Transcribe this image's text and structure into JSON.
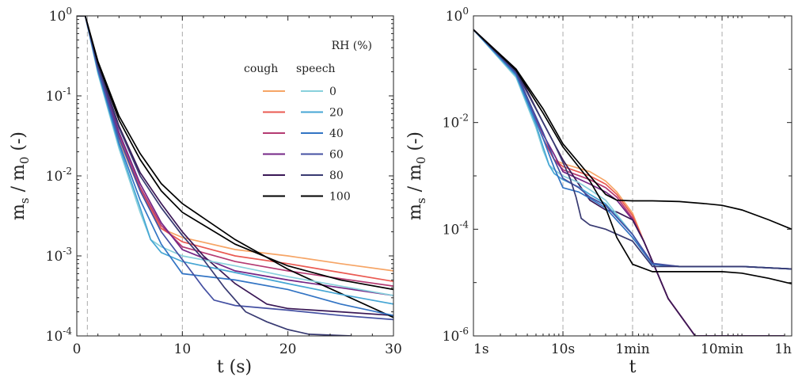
{
  "figure": {
    "left": {
      "xlabel": "t  (s)",
      "ylabel": "m_s / m_0 (-)",
      "xlim": [
        0,
        30
      ],
      "ylim": [
        0.0001,
        1
      ],
      "xticks": [
        {
          "v": 0,
          "label": "0"
        },
        {
          "v": 10,
          "label": "10"
        },
        {
          "v": 20,
          "label": "20"
        },
        {
          "v": 30,
          "label": "30"
        }
      ],
      "yticks": [
        {
          "e": -4
        },
        {
          "e": -3
        },
        {
          "e": -2
        },
        {
          "e": -1
        },
        {
          "e": 0
        }
      ],
      "vlines": [
        1,
        10
      ]
    },
    "right": {
      "xlabel": "t",
      "ylabel": "m_s / m_0 (-)",
      "xlim_seconds": [
        1,
        3600
      ],
      "ylim": [
        1e-06,
        1
      ],
      "xticks": [
        {
          "v": 1,
          "label": "1s"
        },
        {
          "v": 10,
          "label": "10s"
        },
        {
          "v": 60,
          "label": "1min"
        },
        {
          "v": 600,
          "label": "10min"
        },
        {
          "v": 3600,
          "label": "1h"
        }
      ],
      "yticks": [
        {
          "e": -6
        },
        {
          "e": -4
        },
        {
          "e": -2
        },
        {
          "e": 0
        }
      ],
      "vlines": [
        10,
        60,
        600
      ]
    },
    "legend": {
      "title": "RH (%)",
      "col_cough": "cough",
      "col_speech": "speech",
      "placement": "top-right of left panel",
      "entries": [
        {
          "rh": "0",
          "cough_color": "#f6a566",
          "speech_color": "#88d0dc"
        },
        {
          "rh": "20",
          "cough_color": "#ea5a52",
          "speech_color": "#46a6d4"
        },
        {
          "rh": "40",
          "cough_color": "#b43a72",
          "speech_color": "#3274c4"
        },
        {
          "rh": "60",
          "cough_color": "#742686",
          "speech_color": "#4450a2"
        },
        {
          "rh": "80",
          "cough_color": "#3a1856",
          "speech_color": "#383a72"
        },
        {
          "rh": "100",
          "cough_color": "#000000",
          "speech_color": "#000000"
        }
      ]
    }
  },
  "chart_data": [
    {
      "type": "line",
      "panel": "left",
      "xlabel": "t  (s)",
      "ylabel": "m_s / m_0 (-)",
      "yscale": "log",
      "xlim": [
        0,
        30
      ],
      "ylim": [
        0.0001,
        1
      ],
      "series": [
        {
          "name": "cough 0",
          "color": "#f6a566",
          "x": [
            0,
            0.8,
            2,
            4,
            6,
            8,
            10,
            15,
            20,
            25,
            30
          ],
          "y": [
            1,
            1,
            0.2,
            0.028,
            0.0065,
            0.0022,
            0.0017,
            0.0012,
            0.001,
            0.0008,
            0.00065
          ]
        },
        {
          "name": "cough 20",
          "color": "#ea5a52",
          "x": [
            0,
            0.8,
            2,
            4,
            6,
            8,
            10,
            15,
            20,
            25,
            30
          ],
          "y": [
            1,
            1,
            0.21,
            0.03,
            0.0068,
            0.0022,
            0.0015,
            0.001,
            0.0008,
            0.00062,
            0.00048
          ]
        },
        {
          "name": "cough 40",
          "color": "#b43a72",
          "x": [
            0,
            0.8,
            2,
            4,
            6,
            8,
            10,
            15,
            20,
            25,
            30
          ],
          "y": [
            1,
            1,
            0.22,
            0.032,
            0.0072,
            0.0024,
            0.0013,
            0.00085,
            0.00065,
            0.00052,
            0.00042
          ]
        },
        {
          "name": "cough 60",
          "color": "#742686",
          "x": [
            0,
            0.8,
            2,
            4,
            6,
            8,
            10,
            15,
            20,
            25,
            30
          ],
          "y": [
            1,
            1,
            0.23,
            0.035,
            0.008,
            0.0026,
            0.0012,
            0.00065,
            0.0005,
            0.0004,
            0.00032
          ]
        },
        {
          "name": "cough 80",
          "color": "#3a1856",
          "x": [
            0,
            0.8,
            2,
            4,
            6,
            8,
            10,
            12,
            15,
            18,
            20,
            25,
            30
          ],
          "y": [
            1,
            1,
            0.25,
            0.042,
            0.011,
            0.0045,
            0.002,
            0.001,
            0.00045,
            0.00025,
            0.00022,
            0.0002,
            0.00018
          ]
        },
        {
          "name": "cough 100",
          "color": "#000000",
          "x": [
            0,
            0.8,
            2,
            4,
            6,
            8,
            10,
            15,
            20,
            25,
            30
          ],
          "y": [
            1,
            1,
            0.27,
            0.056,
            0.019,
            0.008,
            0.0045,
            0.0016,
            0.00068,
            0.00034,
            0.00017
          ]
        },
        {
          "name": "speech 0",
          "color": "#88d0dc",
          "x": [
            0,
            0.8,
            2,
            4,
            6,
            7,
            8,
            10,
            15,
            20,
            25,
            30
          ],
          "y": [
            1,
            1,
            0.19,
            0.022,
            0.0035,
            0.0016,
            0.0013,
            0.001,
            0.00075,
            0.00055,
            0.00042,
            0.00032
          ]
        },
        {
          "name": "speech 20",
          "color": "#46a6d4",
          "x": [
            0,
            0.8,
            2,
            4,
            6,
            7,
            8,
            10,
            15,
            20,
            25,
            30
          ],
          "y": [
            1,
            1,
            0.2,
            0.024,
            0.004,
            0.0016,
            0.0011,
            0.00085,
            0.00062,
            0.00045,
            0.00033,
            0.00025
          ]
        },
        {
          "name": "speech 40",
          "color": "#3274c4",
          "x": [
            0,
            0.8,
            2,
            4,
            6,
            8,
            10,
            15,
            20,
            25,
            30
          ],
          "y": [
            1,
            1,
            0.21,
            0.026,
            0.005,
            0.0014,
            0.0006,
            0.0005,
            0.00038,
            0.00025,
            0.00018
          ]
        },
        {
          "name": "speech 60",
          "color": "#4450a2",
          "x": [
            0,
            0.8,
            2,
            4,
            6,
            8,
            10,
            11,
            12,
            13,
            15,
            20,
            25,
            30
          ],
          "y": [
            1,
            1,
            0.22,
            0.03,
            0.0065,
            0.002,
            0.0009,
            0.0006,
            0.0004,
            0.00028,
            0.00024,
            0.00021,
            0.00018,
            0.00016
          ]
        },
        {
          "name": "speech 80",
          "color": "#383a72",
          "x": [
            0,
            0.8,
            2,
            4,
            6,
            8,
            10,
            12,
            14,
            16,
            18,
            20,
            22,
            26
          ],
          "y": [
            1,
            1,
            0.24,
            0.04,
            0.01,
            0.004,
            0.0018,
            0.0009,
            0.0004,
            0.0002,
            0.00015,
            0.00012,
            0.000105,
            0.0001
          ]
        },
        {
          "name": "speech 100",
          "color": "#000000",
          "x": [
            0,
            0.8,
            2,
            4,
            6,
            8,
            10,
            15,
            20,
            25,
            30
          ],
          "y": [
            1,
            1,
            0.26,
            0.05,
            0.016,
            0.0065,
            0.0035,
            0.0014,
            0.00075,
            0.0005,
            0.00038
          ]
        }
      ]
    },
    {
      "type": "line",
      "panel": "right",
      "xlabel": "t",
      "ylabel": "m_s / m_0 (-)",
      "xscale": "log",
      "yscale": "log",
      "xlim_seconds": [
        1,
        3600
      ],
      "ylim": [
        1e-06,
        1
      ],
      "series": [
        {
          "name": "cough 0",
          "color": "#f6a566",
          "x": [
            1,
            3,
            6,
            8,
            10,
            20,
            30,
            40,
            60,
            80,
            100,
            150,
            300,
            600,
            1000,
            3000
          ],
          "y": [
            0.55,
            0.09,
            0.005,
            0.002,
            0.0017,
            0.0012,
            0.0008,
            0.0005,
            0.0002,
            6e-05,
            2.5e-05,
            5e-06,
            1e-06,
            1e-06,
            1e-06,
            1e-06
          ]
        },
        {
          "name": "cough 20",
          "color": "#ea5a52",
          "x": [
            1,
            3,
            6,
            8,
            10,
            20,
            30,
            40,
            60,
            80,
            100,
            150,
            300,
            600,
            1000,
            3000
          ],
          "y": [
            0.55,
            0.09,
            0.005,
            0.002,
            0.0015,
            0.001,
            0.0007,
            0.00045,
            0.00018,
            6e-05,
            2.5e-05,
            5e-06,
            1e-06,
            1e-06,
            1e-06,
            1e-06
          ]
        },
        {
          "name": "cough 40",
          "color": "#b43a72",
          "x": [
            1,
            3,
            6,
            8,
            10,
            20,
            30,
            40,
            60,
            80,
            100,
            150,
            300,
            600,
            1000,
            3000
          ],
          "y": [
            0.55,
            0.09,
            0.005,
            0.002,
            0.0013,
            0.00085,
            0.0006,
            0.0004,
            0.00016,
            6e-05,
            2.5e-05,
            5e-06,
            1e-06,
            1e-06,
            1e-06,
            1e-06
          ]
        },
        {
          "name": "cough 60",
          "color": "#742686",
          "x": [
            1,
            3,
            6,
            8,
            10,
            20,
            30,
            40,
            60,
            80,
            100,
            150,
            300,
            600,
            1000,
            3000
          ],
          "y": [
            0.55,
            0.09,
            0.006,
            0.0025,
            0.0012,
            0.0007,
            0.0005,
            0.00035,
            0.00015,
            6e-05,
            2.5e-05,
            5e-06,
            1e-06,
            1e-06,
            1e-06,
            1e-06
          ]
        },
        {
          "name": "cough 80",
          "color": "#3a1856",
          "x": [
            1,
            3,
            6,
            8,
            10,
            15,
            20,
            30,
            40,
            60,
            80,
            100,
            150,
            300,
            600,
            1000,
            3000
          ],
          "y": [
            0.55,
            0.1,
            0.01,
            0.004,
            0.002,
            0.0007,
            0.00035,
            0.00023,
            0.00021,
            0.00015,
            6e-05,
            2.5e-05,
            5e-06,
            1e-06,
            1e-06,
            1e-06,
            1e-06
          ]
        },
        {
          "name": "cough 100",
          "color": "#000000",
          "x": [
            1,
            3,
            6,
            10,
            20,
            30,
            40,
            60,
            100,
            200,
            400,
            600,
            1000,
            2000,
            3600
          ],
          "y": [
            0.55,
            0.1,
            0.018,
            0.004,
            0.001,
            0.00045,
            0.00035,
            0.00034,
            0.00034,
            0.00033,
            0.0003,
            0.00028,
            0.00023,
            0.00015,
            0.0001
          ]
        },
        {
          "name": "speech 0",
          "color": "#88d0dc",
          "x": [
            1,
            3,
            5,
            6,
            7,
            8,
            10,
            15,
            20,
            30,
            60,
            100,
            200,
            600,
            1000,
            3600
          ],
          "y": [
            0.55,
            0.07,
            0.008,
            0.003,
            0.0016,
            0.0013,
            0.001,
            0.00075,
            0.00055,
            0.00035,
            8e-05,
            2.2e-05,
            2e-05,
            2e-05,
            2e-05,
            1.8e-05
          ]
        },
        {
          "name": "speech 20",
          "color": "#46a6d4",
          "x": [
            1,
            3,
            5,
            6,
            7,
            8,
            10,
            15,
            20,
            30,
            60,
            100,
            200,
            600,
            1000,
            3600
          ],
          "y": [
            0.55,
            0.075,
            0.009,
            0.0035,
            0.0016,
            0.0011,
            0.00085,
            0.00062,
            0.00045,
            0.0003,
            8e-05,
            2.2e-05,
            2e-05,
            2e-05,
            2e-05,
            1.8e-05
          ]
        },
        {
          "name": "speech 40",
          "color": "#3274c4",
          "x": [
            1,
            3,
            6,
            8,
            10,
            15,
            20,
            30,
            60,
            100,
            200,
            600,
            1000,
            3600
          ],
          "y": [
            0.55,
            0.08,
            0.005,
            0.0014,
            0.0006,
            0.0005,
            0.00038,
            0.00025,
            7e-05,
            2.2e-05,
            2e-05,
            2e-05,
            2e-05,
            1.8e-05
          ]
        },
        {
          "name": "speech 60",
          "color": "#4450a2",
          "x": [
            1,
            3,
            6,
            8,
            10,
            15,
            20,
            30,
            60,
            100,
            200,
            600,
            1000,
            3600
          ],
          "y": [
            0.55,
            0.085,
            0.0065,
            0.002,
            0.0009,
            0.0006,
            0.0004,
            0.00028,
            8e-05,
            2.3e-05,
            2e-05,
            2e-05,
            2e-05,
            1.8e-05
          ]
        },
        {
          "name": "speech 80",
          "color": "#383a72",
          "x": [
            1,
            3,
            6,
            8,
            10,
            12,
            14,
            16,
            20,
            30,
            60,
            100,
            200,
            600,
            1000,
            3600
          ],
          "y": [
            0.55,
            0.09,
            0.01,
            0.004,
            0.0018,
            0.0009,
            0.0004,
            0.00016,
            0.00012,
            0.0001,
            6e-05,
            2e-05,
            2e-05,
            2e-05,
            2e-05,
            1.8e-05
          ]
        },
        {
          "name": "speech 100",
          "color": "#000000",
          "x": [
            1,
            3,
            6,
            10,
            20,
            30,
            40,
            60,
            100,
            200,
            600,
            1000,
            2000,
            3600
          ],
          "y": [
            0.55,
            0.095,
            0.015,
            0.0035,
            0.0008,
            0.00025,
            7e-05,
            2.2e-05,
            1.6e-05,
            1.6e-05,
            1.6e-05,
            1.5e-05,
            1.2e-05,
            9.5e-06
          ]
        }
      ]
    }
  ]
}
